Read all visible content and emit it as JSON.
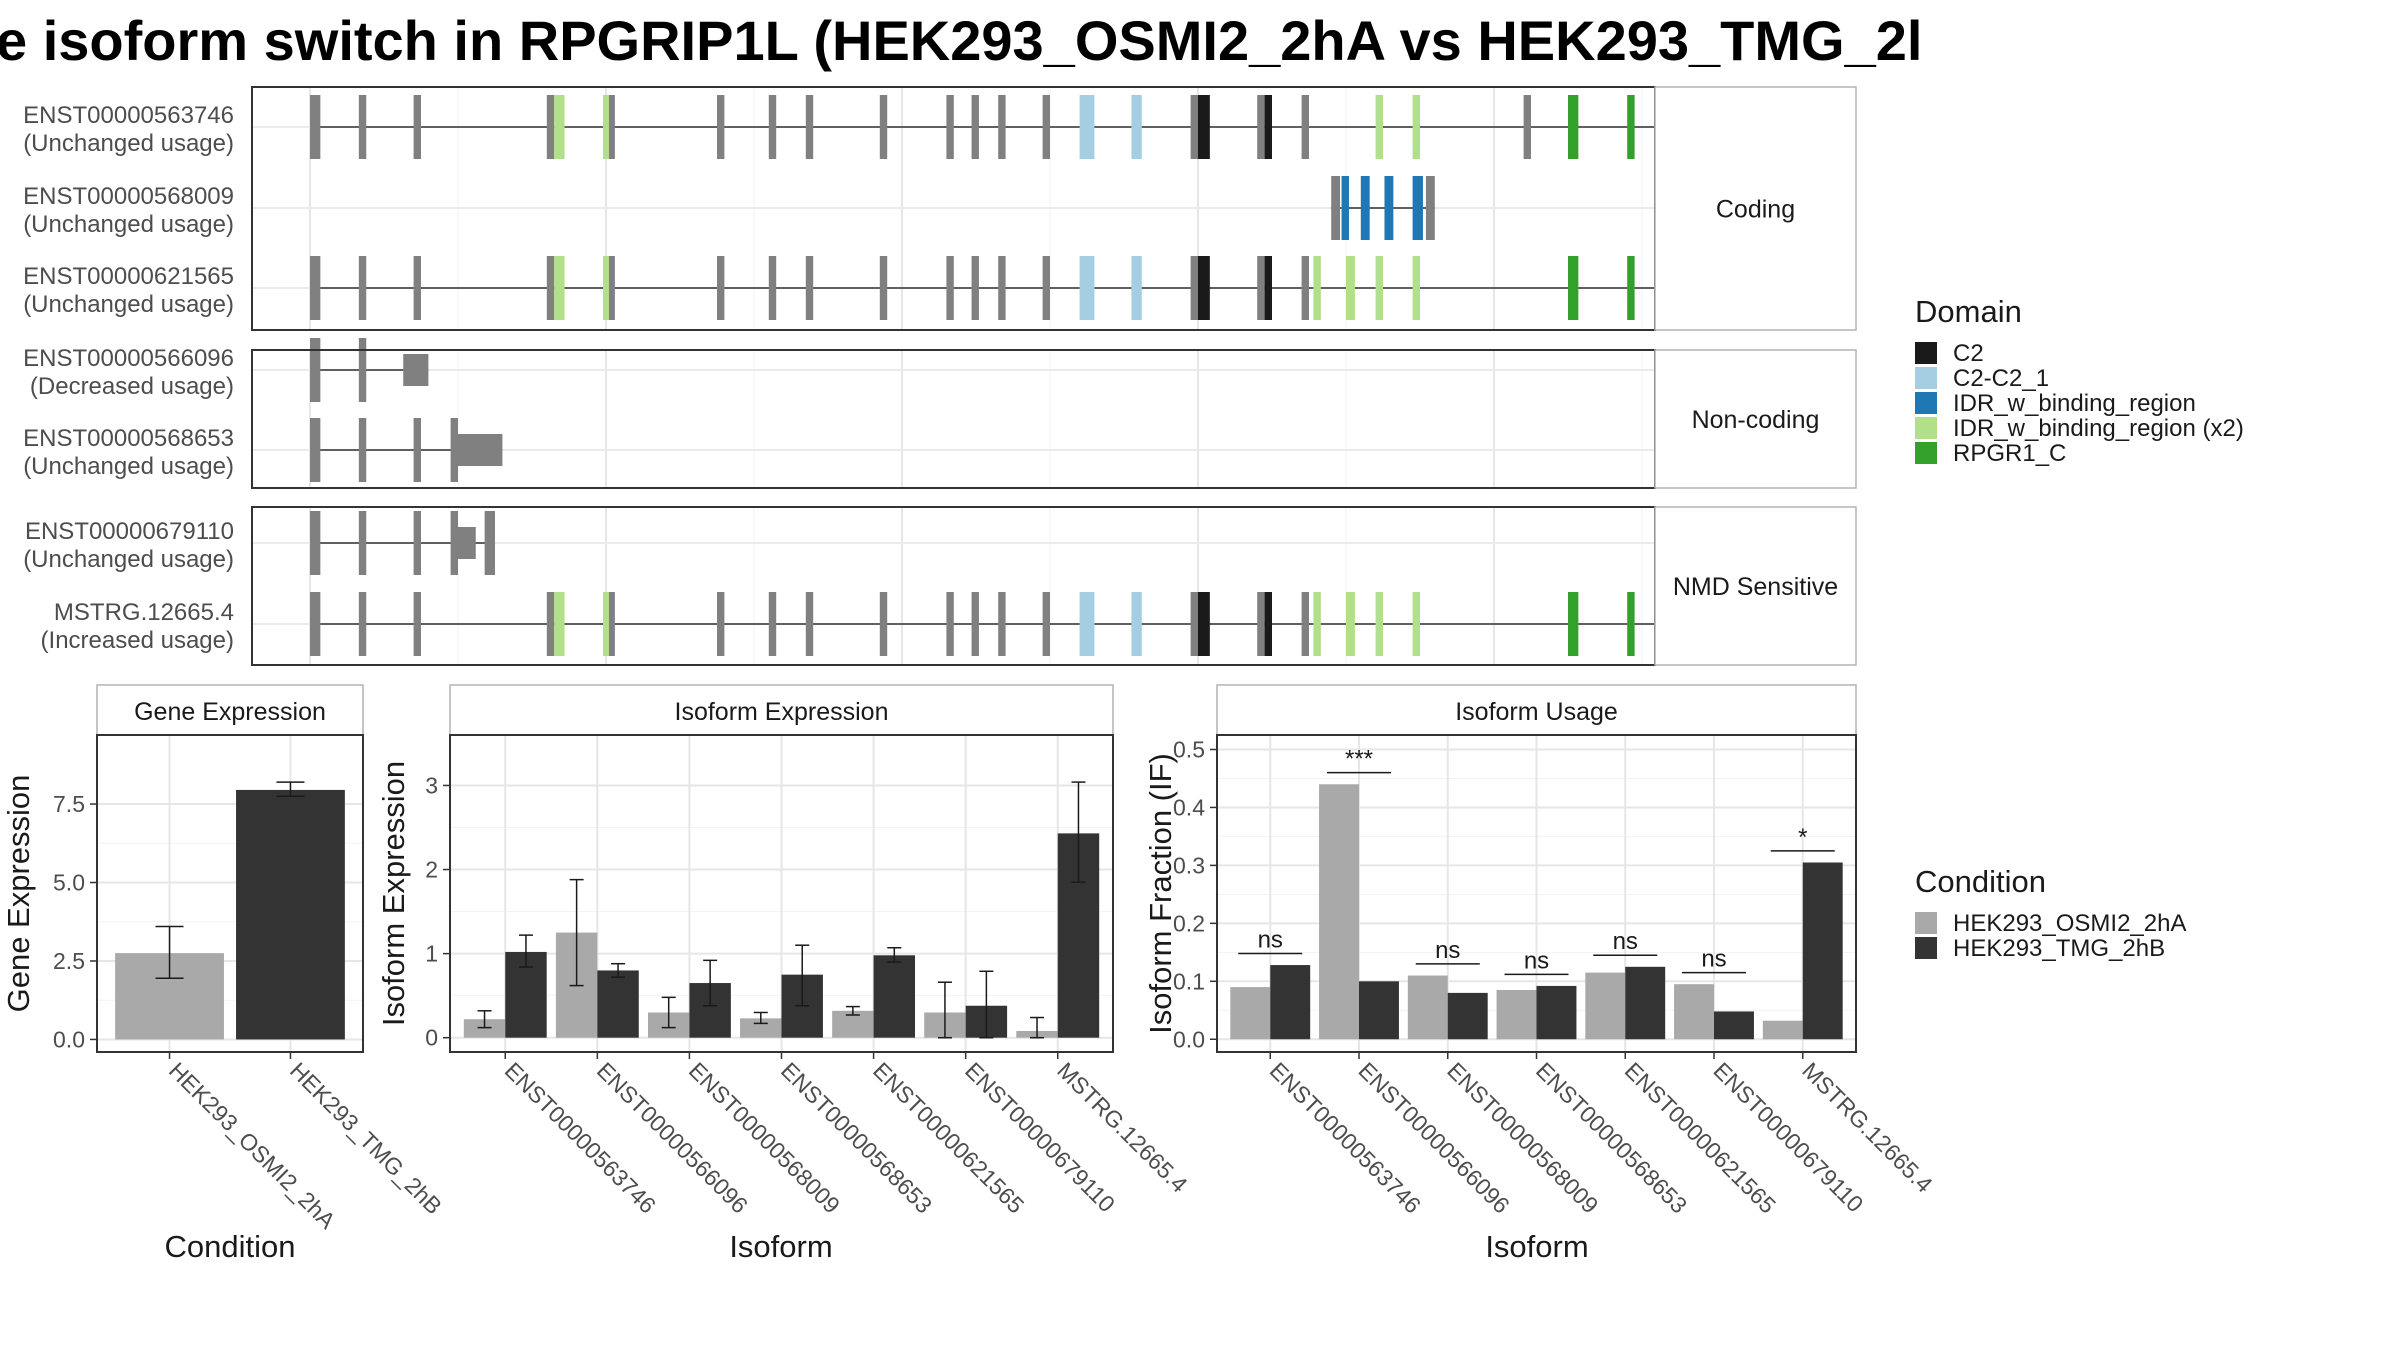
{
  "title": "e isoform switch in RPGRIP1L (HEK293_OSMI2_2hA vs HEK293_TMG_2l",
  "colors": {
    "exon": "#808080",
    "C2": "#1a1a1a",
    "C2-C2_1": "#a6cee3",
    "IDR_w_binding_region": "#1f78b4",
    "IDR_w_binding_region (x2)": "#b2df8a",
    "RPGR1_C": "#33a02c",
    "HEK293_OSMI2_2hA": "#a9a9a9",
    "HEK293_TMG_2hB": "#333333"
  },
  "structure": {
    "xlim": [
      0,
      1000
    ],
    "panels": [
      {
        "label": "Coding",
        "tracks": [
          {
            "id": "ENST00000563746",
            "usage": "(Unchanged usage)",
            "span": [
              0,
              990
            ]
          },
          {
            "id": "ENST00000568009",
            "usage": "(Unchanged usage)",
            "span": [
              690,
              760
            ]
          },
          {
            "id": "ENST00000621565",
            "usage": "(Unchanged usage)",
            "span": [
              0,
              1010
            ]
          }
        ]
      },
      {
        "label": "Non-coding",
        "tracks": [
          {
            "id": "ENST00000566096",
            "usage": "(Decreased usage)",
            "span": [
              0,
              80
            ]
          },
          {
            "id": "ENST00000568653",
            "usage": "(Unchanged usage)",
            "span": [
              0,
              130
            ]
          }
        ]
      },
      {
        "label": "NMD Sensitive",
        "tracks": [
          {
            "id": "ENST00000679110",
            "usage": "(Unchanged usage)",
            "span": [
              0,
              125
            ]
          },
          {
            "id": "MSTRG.12665.4",
            "usage": "(Increased usage)",
            "span": [
              0,
              1035
            ]
          }
        ]
      }
    ]
  },
  "legend_domain": {
    "title": "Domain",
    "items": [
      "C2",
      "C2-C2_1",
      "IDR_w_binding_region",
      "IDR_w_binding_region (x2)",
      "RPGR1_C"
    ]
  },
  "legend_condition": {
    "title": "Condition",
    "items": [
      "HEK293_OSMI2_2hA",
      "HEK293_TMG_2hB"
    ]
  },
  "chart_data": [
    {
      "type": "bar",
      "title": "Gene Expression",
      "xlabel": "Condition",
      "ylabel": "Gene Expression",
      "categories": [
        "HEK293_OSMI2_2hA",
        "HEK293_TMG_2hB"
      ],
      "values": [
        2.75,
        7.95
      ],
      "err_low": [
        1.95,
        7.75
      ],
      "err_high": [
        3.6,
        8.2
      ],
      "ylim": [
        -0.4,
        9.7
      ],
      "yticks": [
        0.0,
        2.5,
        5.0,
        7.5
      ],
      "ytick_labels": [
        "0.0",
        "2.5",
        "5.0",
        "7.5"
      ]
    },
    {
      "type": "bar",
      "title": "Isoform Expression",
      "xlabel": "Isoform",
      "ylabel": "Isoform Expression",
      "categories": [
        "ENST00000563746",
        "ENST00000566096",
        "ENST00000568009",
        "ENST00000568653",
        "ENST00000621565",
        "ENST00000679110",
        "MSTRG.12665.4"
      ],
      "series": [
        {
          "name": "HEK293_OSMI2_2hA",
          "values": [
            0.22,
            1.25,
            0.3,
            0.23,
            0.32,
            0.3,
            0.08
          ],
          "err_low": [
            0.12,
            0.62,
            0.12,
            0.17,
            0.27,
            0.0,
            0.0
          ],
          "err_high": [
            0.32,
            1.88,
            0.48,
            0.3,
            0.37,
            0.66,
            0.24
          ]
        },
        {
          "name": "HEK293_TMG_2hB",
          "values": [
            1.02,
            0.8,
            0.65,
            0.75,
            0.98,
            0.38,
            2.43
          ],
          "err_low": [
            0.84,
            0.72,
            0.38,
            0.38,
            0.9,
            0.0,
            1.85
          ],
          "err_high": [
            1.22,
            0.88,
            0.92,
            1.1,
            1.07,
            0.79,
            3.04
          ]
        }
      ],
      "ylim": [
        -0.17,
        3.6
      ],
      "yticks": [
        0,
        1,
        2,
        3
      ],
      "ytick_labels": [
        "0",
        "1",
        "2",
        "3"
      ]
    },
    {
      "type": "bar",
      "title": "Isoform Usage",
      "xlabel": "Isoform",
      "ylabel": "Isoform Fraction (IF)",
      "categories": [
        "ENST00000563746",
        "ENST00000566096",
        "ENST00000568009",
        "ENST00000568653",
        "ENST00000621565",
        "ENST00000679110",
        "MSTRG.12665.4"
      ],
      "series": [
        {
          "name": "HEK293_OSMI2_2hA",
          "values": [
            0.09,
            0.44,
            0.11,
            0.085,
            0.115,
            0.095,
            0.032
          ]
        },
        {
          "name": "HEK293_TMG_2hB",
          "values": [
            0.128,
            0.1,
            0.08,
            0.092,
            0.125,
            0.048,
            0.305
          ]
        }
      ],
      "significance": [
        "ns",
        "***",
        "ns",
        "ns",
        "ns",
        "ns",
        "*"
      ],
      "ylim": [
        -0.022,
        0.525
      ],
      "yticks": [
        0.0,
        0.1,
        0.2,
        0.3,
        0.4,
        0.5
      ],
      "ytick_labels": [
        "0.0",
        "0.1",
        "0.2",
        "0.3",
        "0.4",
        "0.5"
      ]
    }
  ]
}
